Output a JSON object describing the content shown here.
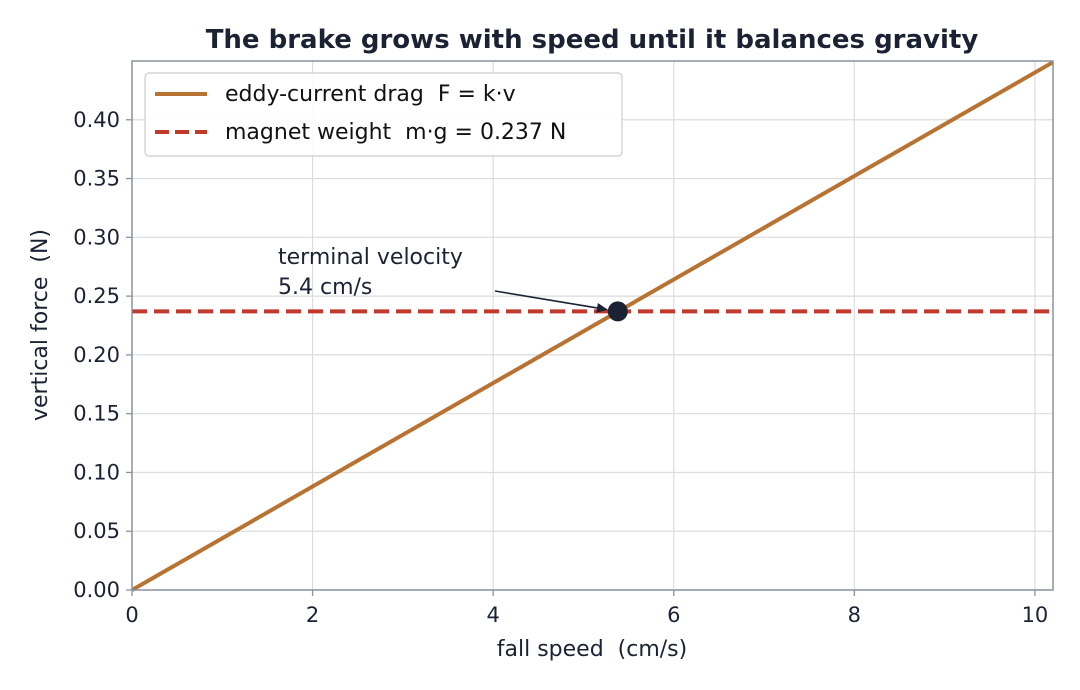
{
  "chart_data": {
    "type": "line",
    "title": "The brake grows with speed until it balances gravity",
    "xlabel": "fall speed  (cm/s)",
    "ylabel": "vertical force  (N)",
    "xlim": [
      0,
      10.2
    ],
    "ylim": [
      0,
      0.45
    ],
    "xticks": [
      0,
      2,
      4,
      6,
      8,
      10
    ],
    "yticks": [
      0.0,
      0.05,
      0.1,
      0.15,
      0.2,
      0.25,
      0.3,
      0.35,
      0.4
    ],
    "xtick_labels": [
      "0",
      "2",
      "4",
      "6",
      "8",
      "10"
    ],
    "ytick_labels": [
      "0.00",
      "0.05",
      "0.10",
      "0.15",
      "0.20",
      "0.25",
      "0.30",
      "0.35",
      "0.40"
    ],
    "grid": true,
    "legend_position": "top-left",
    "series": [
      {
        "name": "eddy-current drag  F = k·v",
        "style": "solid",
        "color": "#b87333",
        "x": [
          0,
          10.2
        ],
        "y": [
          0,
          0.449
        ]
      },
      {
        "name": "magnet weight  m·g = 0.237 N",
        "style": "dashed",
        "color": "#c0392b",
        "x": [
          0,
          10.2
        ],
        "y": [
          0.237,
          0.237
        ]
      }
    ],
    "intersection": {
      "x": 5.38,
      "y": 0.237,
      "color": "#1b2233"
    },
    "annotation": {
      "line1": "terminal velocity",
      "line2": "5.4 cm/s"
    }
  }
}
